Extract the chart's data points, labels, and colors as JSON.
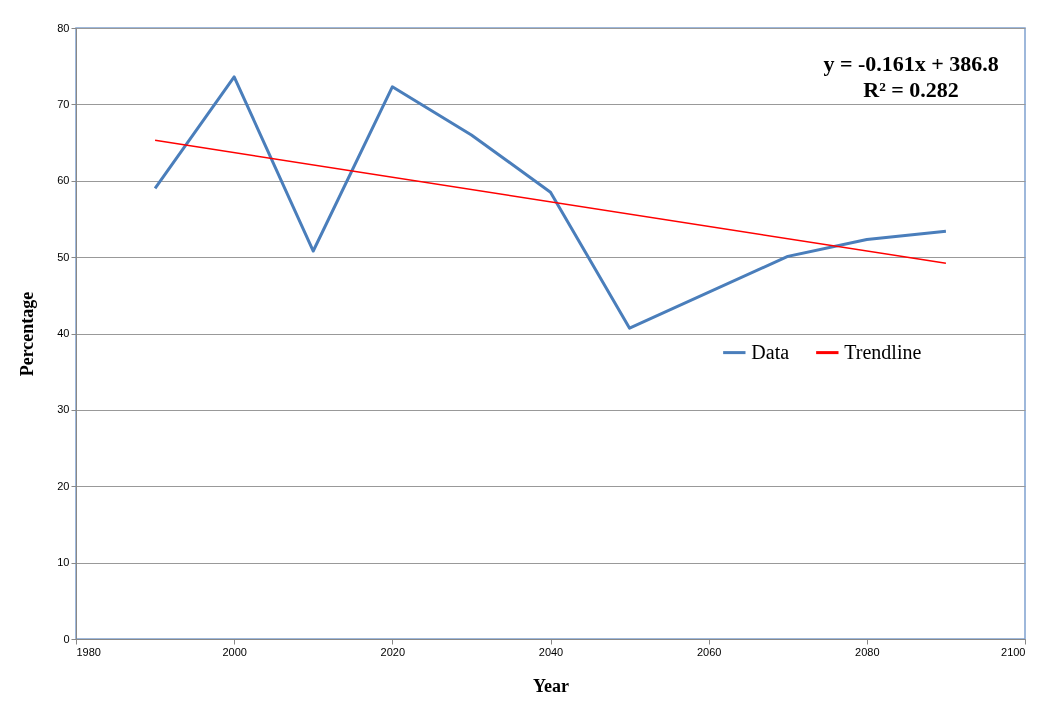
{
  "chart_data": {
    "type": "line",
    "xlabel": "Year",
    "ylabel": "Percentage",
    "xlim": [
      1980,
      2100
    ],
    "xticks": [
      1980,
      2000,
      2020,
      2040,
      2060,
      2080,
      2100
    ],
    "ylim": [
      0,
      80
    ],
    "yticks": [
      0,
      10,
      20,
      30,
      40,
      50,
      60,
      70,
      80
    ],
    "grid": "y",
    "legend": "right",
    "marker": "none",
    "line_style": "solid",
    "annotations": [
      "y = -0.161x + 386.8",
      "R² = 0.282"
    ],
    "series": [
      {
        "name": "Data",
        "color": "#4a7ebb",
        "x": [
          1990,
          2000,
          2010,
          2020,
          2030,
          2040,
          2050,
          2070,
          2080,
          2090
        ],
        "values": [
          59.0,
          73.6,
          50.8,
          72.3,
          66.0,
          58.5,
          40.7,
          50.1,
          52.3,
          53.4
        ]
      },
      {
        "name": "Trendline",
        "color": "#ff0000",
        "type": "line",
        "x": [
          1990,
          2090
        ],
        "values": [
          65.3,
          49.2
        ]
      }
    ]
  }
}
